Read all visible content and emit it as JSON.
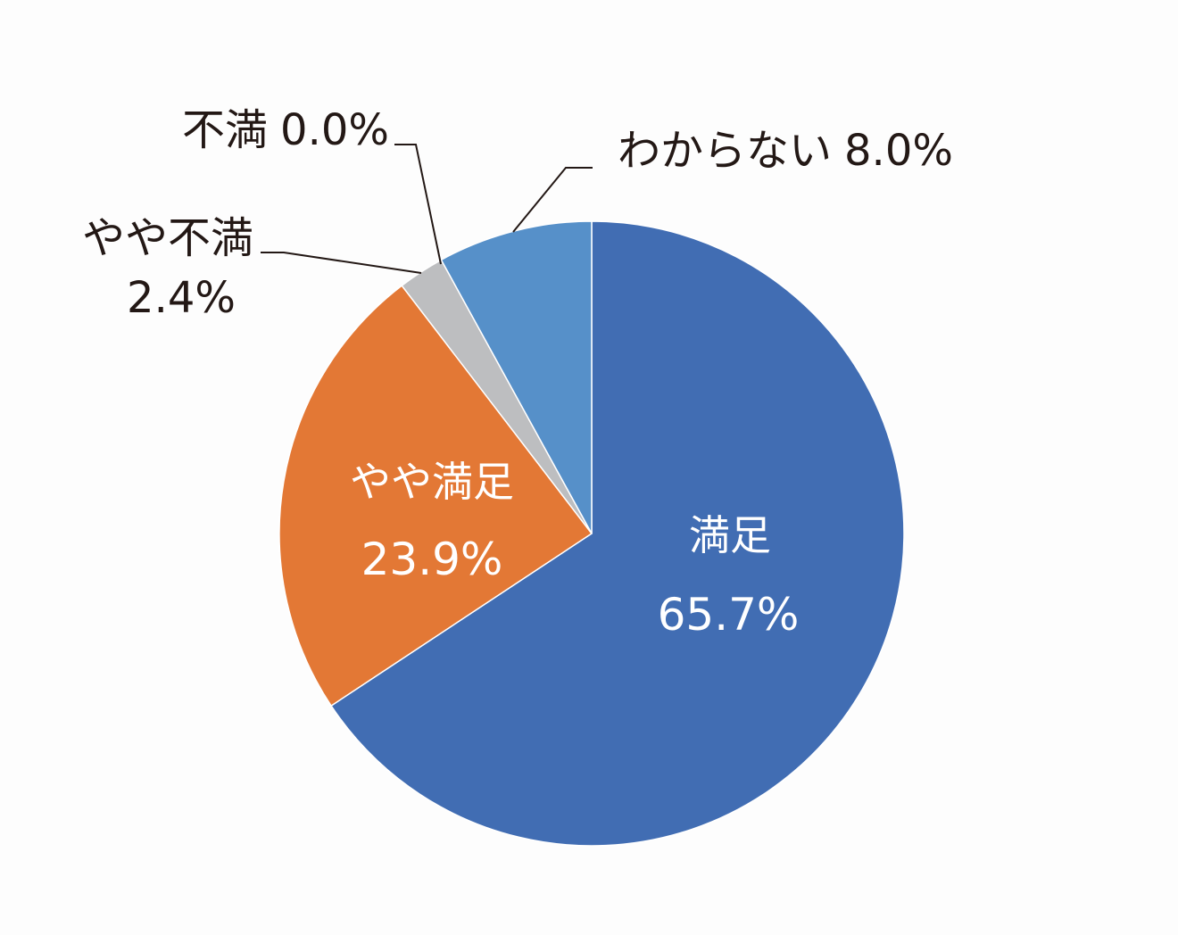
{
  "chart_data": {
    "type": "pie",
    "start_angle_deg": 0,
    "direction": "clockwise",
    "slices": [
      {
        "label": "満足",
        "value": 65.7,
        "value_text": "65.7%",
        "color": "#416db3"
      },
      {
        "label": "やや満足",
        "value": 23.9,
        "value_text": "23.9%",
        "color": "#e37835"
      },
      {
        "label": "やや不満",
        "value": 2.4,
        "value_text": "2.4%",
        "color": "#bdbec0"
      },
      {
        "label": "不満",
        "value": 0.0,
        "value_text": "0.0%",
        "color": "#bdbec0"
      },
      {
        "label": "わからない",
        "value": 8.0,
        "value_text": "8.0%",
        "color": "#5690c9"
      }
    ]
  }
}
